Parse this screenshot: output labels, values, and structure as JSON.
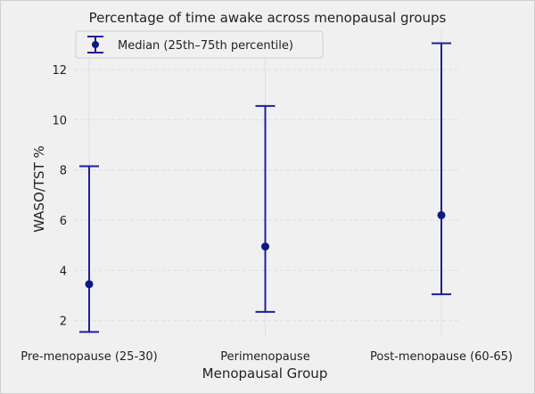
{
  "chart_data": {
    "type": "scatter",
    "title": "Percentage of time awake across menopausal groups",
    "xlabel": "Menopausal Group",
    "ylabel": "WASO/TST %",
    "categories": [
      "Pre-menopause (25-30)",
      "Perimenopause",
      "Post-menopause (60-65)"
    ],
    "series": [
      {
        "name": "Median (25th–75th percentile)",
        "median": [
          3.45,
          4.95,
          6.2
        ],
        "p25": [
          1.55,
          2.35,
          3.05
        ],
        "p75": [
          8.15,
          10.55,
          13.05
        ]
      }
    ],
    "ylim": [
      1.35,
      13.6
    ],
    "yticks": [
      2,
      4,
      6,
      8,
      10,
      12
    ],
    "grid": true,
    "legend_position": "top-left",
    "colors": {
      "series": "#1f1f99",
      "marker": "#0a1a80",
      "grid": "#dedede",
      "background": "#f0f0f0"
    }
  }
}
